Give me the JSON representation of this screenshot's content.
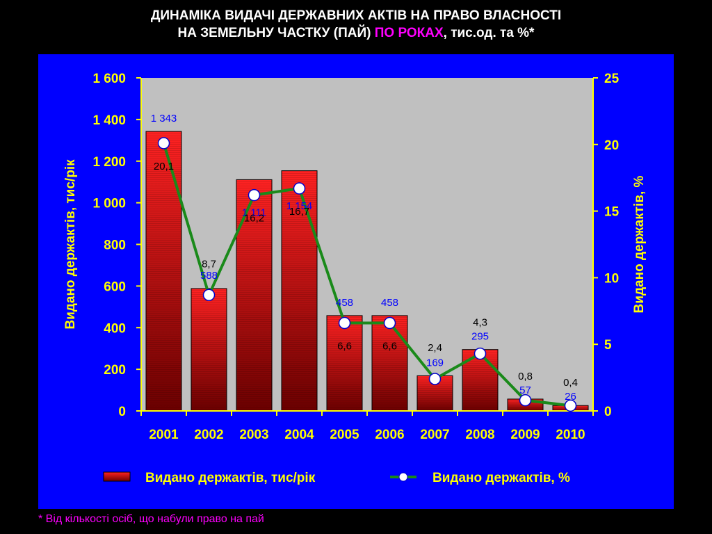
{
  "title": {
    "line1": "ДИНАМІКА ВИДАЧІ ДЕРЖАВНИХ АКТІВ НА ПРАВО ВЛАСНОСТІ",
    "line2_prefix": "НА ЗЕМЕЛЬНУ ЧАСТКУ (ПАЙ) ",
    "line2_highlight": "ПО РОКАХ",
    "line2_suffix": ", тис.од. та %*"
  },
  "footnote": "* Від кількості осіб, що набули право на пай",
  "colors": {
    "background": "#000000",
    "panel": "#0000ff",
    "plot_area": "#c0c0c0",
    "axis_text": "#ffff00",
    "bar_top": "#ff2222",
    "bar_bottom": "#6b0000",
    "line": "#1a8a1a",
    "bar_label": "#0000ff",
    "line_label": "#000000",
    "title_highlight": "#ff00ff"
  },
  "chart_data": {
    "type": "bar",
    "categories": [
      "2001",
      "2002",
      "2003",
      "2004",
      "2005",
      "2006",
      "2007",
      "2008",
      "2009",
      "2010"
    ],
    "series": [
      {
        "name": "Видано держактів, тис/рік",
        "type": "bar",
        "axis": "left",
        "values": [
          1343,
          588,
          1111,
          1154,
          458,
          458,
          169,
          295,
          57,
          26
        ],
        "labels": [
          "1 343",
          "588",
          "1 111",
          "1 154",
          "458",
          "458",
          "169",
          "295",
          "57",
          "26"
        ]
      },
      {
        "name": "Видано держактів, %",
        "type": "line",
        "axis": "right",
        "values": [
          20.1,
          8.7,
          16.2,
          16.7,
          6.6,
          6.6,
          2.4,
          4.3,
          0.8,
          0.4
        ],
        "labels": [
          "20,1",
          "8,7",
          "16,2",
          "16,7",
          "6,6",
          "6,6",
          "2,4",
          "4,3",
          "0,8",
          "0,4"
        ]
      }
    ],
    "ylabel_left": "Видано держактів, тис/рік",
    "ylabel_right": "Видано держактів, %",
    "ylim_left": [
      0,
      1600
    ],
    "ylim_right": [
      0,
      25
    ],
    "yticks_left": [
      0,
      200,
      400,
      600,
      800,
      1000,
      1200,
      1400,
      1600
    ],
    "yticks_left_labels": [
      "0",
      "200",
      "400",
      "600",
      "800",
      "1 000",
      "1 200",
      "1 400",
      "1 600"
    ],
    "yticks_right": [
      0,
      5,
      10,
      15,
      20,
      25
    ],
    "yticks_right_labels": [
      "0",
      "5",
      "10",
      "15",
      "20",
      "25"
    ],
    "grid": false,
    "legend_position": "bottom"
  }
}
